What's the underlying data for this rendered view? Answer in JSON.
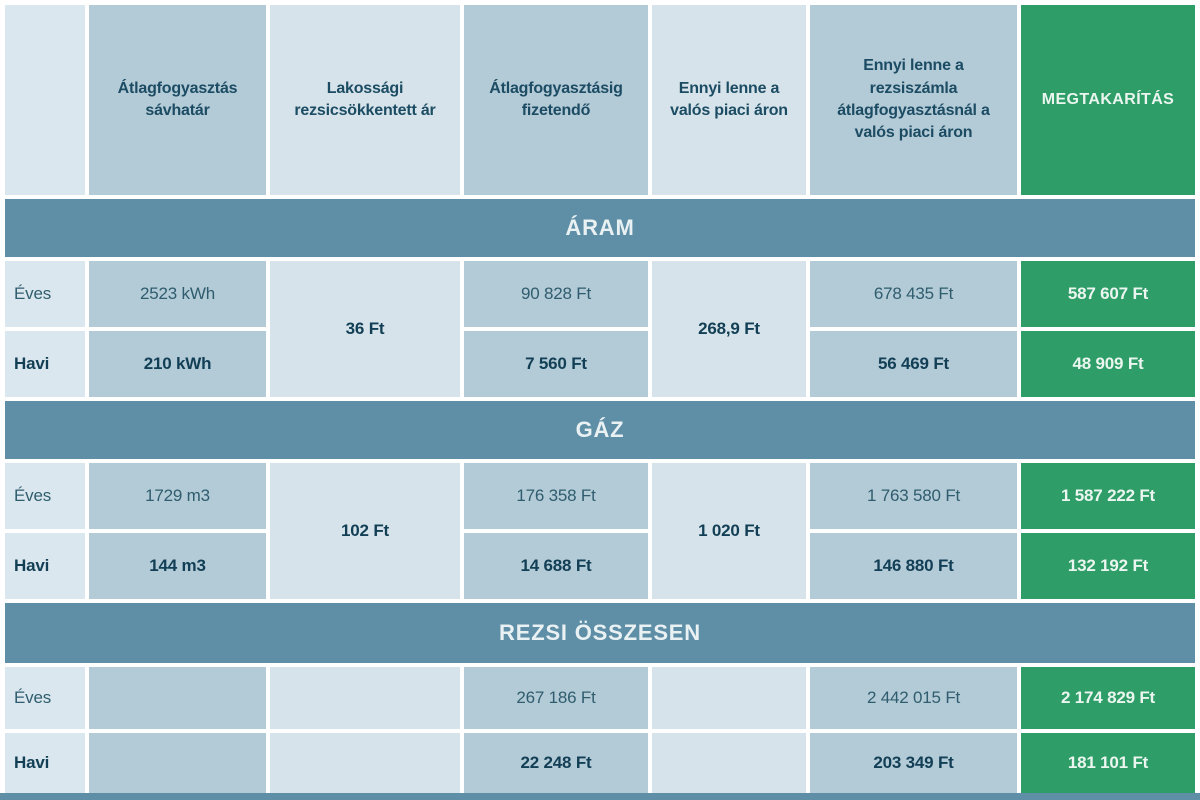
{
  "colors": {
    "cell_light": "#dbe7ee",
    "cell_lighter": "#d6e3ea",
    "cell_dark": "#b3cad7",
    "savings_green": "#2f9d68",
    "section_bar": "#5e8fa7",
    "text_dark": "#16455c",
    "text_light": "#eaf6ef"
  },
  "chart_data": {
    "type": "table",
    "columns": [
      "",
      "Átlagfogyasztás sávhatár",
      "Lakossági rezsicsökkentett ár",
      "Átlagfogyasztásig fizetendő",
      "Ennyi lenne a valós piaci áron",
      "Ennyi lenne a rezsiszámla átlagfogyasztásnál a valós piaci áron",
      "MEGTAKARÍTÁS"
    ],
    "sections": [
      {
        "title": "ÁRAM",
        "merged": {
          "residential_reduced_price": "36 Ft",
          "real_market_unit_price": "268,9 Ft"
        },
        "rows": [
          {
            "label": "Éves",
            "consumption": "2523 kWh",
            "payable_up_to_avg": "90 828 Ft",
            "bill_at_market_price": "678 435 Ft",
            "savings": "587 607 Ft"
          },
          {
            "label": "Havi",
            "consumption": "210 kWh",
            "payable_up_to_avg": "7 560 Ft",
            "bill_at_market_price": "56 469 Ft",
            "savings": "48 909 Ft"
          }
        ]
      },
      {
        "title": "GÁZ",
        "merged": {
          "residential_reduced_price": "102 Ft",
          "real_market_unit_price": "1 020 Ft"
        },
        "rows": [
          {
            "label": "Éves",
            "consumption": "1729 m3",
            "payable_up_to_avg": "176 358 Ft",
            "bill_at_market_price": "1 763 580 Ft",
            "savings": "1 587 222 Ft"
          },
          {
            "label": "Havi",
            "consumption": "144 m3",
            "payable_up_to_avg": "14 688 Ft",
            "bill_at_market_price": "146 880 Ft",
            "savings": "132 192 Ft"
          }
        ]
      },
      {
        "title": "REZSI ÖSSZESEN",
        "merged": {
          "residential_reduced_price": "",
          "real_market_unit_price": ""
        },
        "rows": [
          {
            "label": "Éves",
            "consumption": "",
            "payable_up_to_avg": "267 186 Ft",
            "bill_at_market_price": "2 442 015 Ft",
            "savings": "2 174 829 Ft"
          },
          {
            "label": "Havi",
            "consumption": "",
            "payable_up_to_avg": "22 248 Ft",
            "bill_at_market_price": "203 349 Ft",
            "savings": "181 101 Ft"
          }
        ]
      }
    ]
  }
}
